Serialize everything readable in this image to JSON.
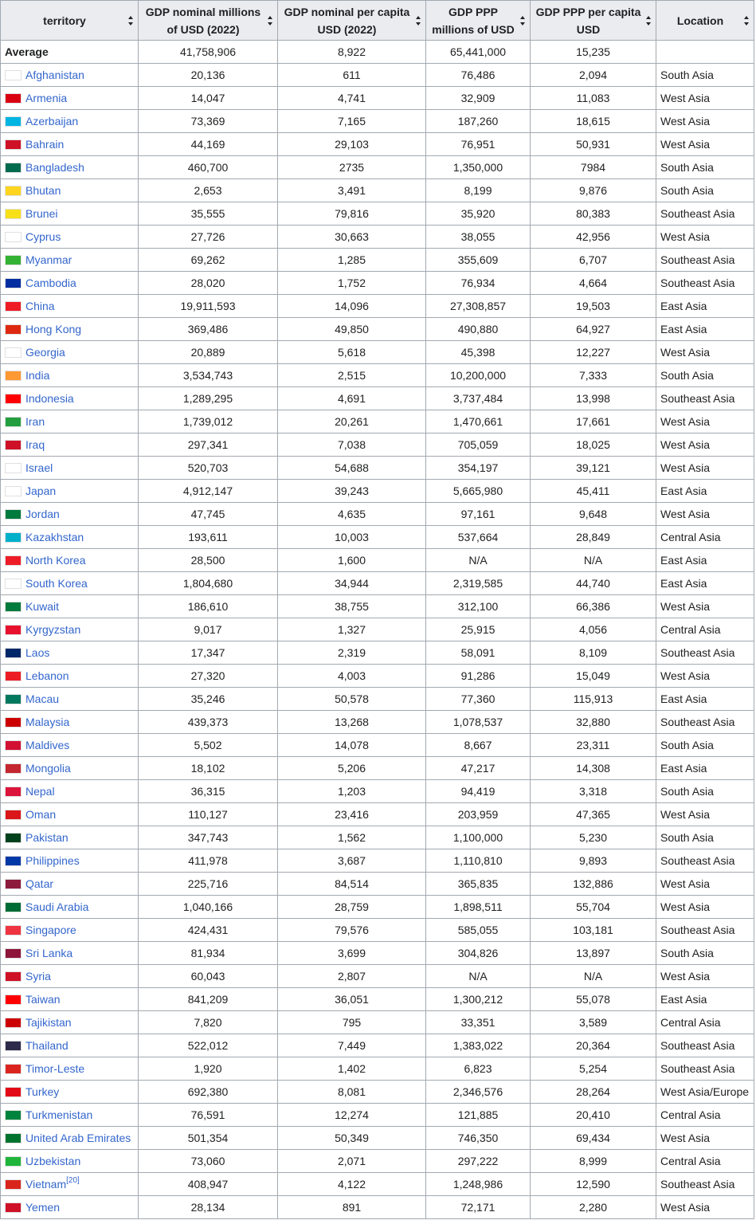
{
  "headers": [
    "territory",
    "GDP nominal millions of USD (2022)",
    "GDP nominal per capita USD (2022)",
    "GDP PPP millions of USD",
    "GDP PPP per capita USD",
    "Location"
  ],
  "average": {
    "label": "Average",
    "gdp_nominal": "41,758,906",
    "gdp_nominal_pc": "8,922",
    "gdp_ppp": "65,441,000",
    "gdp_ppp_pc": "15,235",
    "location": ""
  },
  "rows": [
    {
      "name": "Afghanistan",
      "n": "20,136",
      "npc": "611",
      "p": "76,486",
      "ppc": "2,094",
      "loc": "South Asia",
      "flag": "#ffffff"
    },
    {
      "name": "Armenia",
      "n": "14,047",
      "npc": "4,741",
      "p": "32,909",
      "ppc": "11,083",
      "loc": "West Asia",
      "flag": "#d90012"
    },
    {
      "name": "Azerbaijan",
      "n": "73,369",
      "npc": "7,165",
      "p": "187,260",
      "ppc": "18,615",
      "loc": "West Asia",
      "flag": "#00b5e2"
    },
    {
      "name": "Bahrain",
      "n": "44,169",
      "npc": "29,103",
      "p": "76,951",
      "ppc": "50,931",
      "loc": "West Asia",
      "flag": "#ce1126"
    },
    {
      "name": "Bangladesh",
      "n": "460,700",
      "npc": "2735",
      "p": "1,350,000",
      "ppc": "7984",
      "loc": "South Asia",
      "flag": "#006a4e"
    },
    {
      "name": "Bhutan",
      "n": "2,653",
      "npc": "3,491",
      "p": "8,199",
      "ppc": "9,876",
      "loc": "South Asia",
      "flag": "#ffd520"
    },
    {
      "name": "Brunei",
      "n": "35,555",
      "npc": "79,816",
      "p": "35,920",
      "ppc": "80,383",
      "loc": "Southeast Asia",
      "flag": "#f7e017"
    },
    {
      "name": "Cyprus",
      "n": "27,726",
      "npc": "30,663",
      "p": "38,055",
      "ppc": "42,956",
      "loc": "West Asia",
      "flag": "#ffffff"
    },
    {
      "name": "Myanmar",
      "n": "69,262",
      "npc": "1,285",
      "p": "355,609",
      "ppc": "6,707",
      "loc": "Southeast Asia",
      "flag": "#34b233"
    },
    {
      "name": "Cambodia",
      "n": "28,020",
      "npc": "1,752",
      "p": "76,934",
      "ppc": "4,664",
      "loc": "Southeast Asia",
      "flag": "#032ea1"
    },
    {
      "name": "China",
      "n": "19,911,593",
      "npc": "14,096",
      "p": "27,308,857",
      "ppc": "19,503",
      "loc": "East Asia",
      "flag": "#ee1c25"
    },
    {
      "name": "Hong Kong",
      "n": "369,486",
      "npc": "49,850",
      "p": "490,880",
      "ppc": "64,927",
      "loc": "East Asia",
      "flag": "#de2910"
    },
    {
      "name": "Georgia",
      "n": "20,889",
      "npc": "5,618",
      "p": "45,398",
      "ppc": "12,227",
      "loc": "West Asia",
      "flag": "#ffffff"
    },
    {
      "name": "India",
      "n": "3,534,743",
      "npc": "2,515",
      "p": "10,200,000",
      "ppc": "7,333",
      "loc": "South Asia",
      "flag": "#ff9933"
    },
    {
      "name": "Indonesia",
      "n": "1,289,295",
      "npc": "4,691",
      "p": "3,737,484",
      "ppc": "13,998",
      "loc": "Southeast Asia",
      "flag": "#ff0000"
    },
    {
      "name": "Iran",
      "n": "1,739,012",
      "npc": "20,261",
      "p": "1,470,661",
      "ppc": "17,661",
      "loc": "West Asia",
      "flag": "#239f40"
    },
    {
      "name": "Iraq",
      "n": "297,341",
      "npc": "7,038",
      "p": "705,059",
      "ppc": "18,025",
      "loc": "West Asia",
      "flag": "#ce1126"
    },
    {
      "name": "Israel",
      "n": "520,703",
      "npc": "54,688",
      "p": "354,197",
      "ppc": "39,121",
      "loc": "West Asia",
      "flag": "#ffffff"
    },
    {
      "name": "Japan",
      "n": "4,912,147",
      "npc": "39,243",
      "p": "5,665,980",
      "ppc": "45,411",
      "loc": "East Asia",
      "flag": "#ffffff"
    },
    {
      "name": "Jordan",
      "n": "47,745",
      "npc": "4,635",
      "p": "97,161",
      "ppc": "9,648",
      "loc": "West Asia",
      "flag": "#007a3d"
    },
    {
      "name": "Kazakhstan",
      "n": "193,611",
      "npc": "10,003",
      "p": "537,664",
      "ppc": "28,849",
      "loc": "Central Asia",
      "flag": "#00afca"
    },
    {
      "name": "North Korea",
      "n": "28,500",
      "npc": "1,600",
      "p": "N/A",
      "ppc": "N/A",
      "loc": "East Asia",
      "flag": "#ed1c27"
    },
    {
      "name": "South Korea",
      "n": "1,804,680",
      "npc": "34,944",
      "p": "2,319,585",
      "ppc": "44,740",
      "loc": "East Asia",
      "flag": "#ffffff"
    },
    {
      "name": "Kuwait",
      "n": "186,610",
      "npc": "38,755",
      "p": "312,100",
      "ppc": "66,386",
      "loc": "West Asia",
      "flag": "#007a3d"
    },
    {
      "name": "Kyrgyzstan",
      "n": "9,017",
      "npc": "1,327",
      "p": "25,915",
      "ppc": "4,056",
      "loc": "Central Asia",
      "flag": "#e8112d"
    },
    {
      "name": "Laos",
      "n": "17,347",
      "npc": "2,319",
      "p": "58,091",
      "ppc": "8,109",
      "loc": "Southeast Asia",
      "flag": "#002868"
    },
    {
      "name": "Lebanon",
      "n": "27,320",
      "npc": "4,003",
      "p": "91,286",
      "ppc": "15,049",
      "loc": "West Asia",
      "flag": "#ed1c24"
    },
    {
      "name": "Macau",
      "n": "35,246",
      "npc": "50,578",
      "p": "77,360",
      "ppc": "115,913",
      "loc": "East Asia",
      "flag": "#00785e"
    },
    {
      "name": "Malaysia",
      "n": "439,373",
      "npc": "13,268",
      "p": "1,078,537",
      "ppc": "32,880",
      "loc": "Southeast Asia",
      "flag": "#cc0001"
    },
    {
      "name": "Maldives",
      "n": "5,502",
      "npc": "14,078",
      "p": "8,667",
      "ppc": "23,311",
      "loc": "South Asia",
      "flag": "#d21034"
    },
    {
      "name": "Mongolia",
      "n": "18,102",
      "npc": "5,206",
      "p": "47,217",
      "ppc": "14,308",
      "loc": "East Asia",
      "flag": "#c4272f"
    },
    {
      "name": "Nepal",
      "n": "36,315",
      "npc": "1,203",
      "p": "94,419",
      "ppc": "3,318",
      "loc": "South Asia",
      "flag": "#dc143c"
    },
    {
      "name": "Oman",
      "n": "110,127",
      "npc": "23,416",
      "p": "203,959",
      "ppc": "47,365",
      "loc": "West Asia",
      "flag": "#db161b"
    },
    {
      "name": "Pakistan",
      "n": "347,743",
      "npc": "1,562",
      "p": "1,100,000",
      "ppc": "5,230",
      "loc": "South Asia",
      "flag": "#01411c"
    },
    {
      "name": "Philippines",
      "n": "411,978",
      "npc": "3,687",
      "p": "1,110,810",
      "ppc": "9,893",
      "loc": "Southeast Asia",
      "flag": "#0038a8"
    },
    {
      "name": "Qatar",
      "n": "225,716",
      "npc": "84,514",
      "p": "365,835",
      "ppc": "132,886",
      "loc": "West Asia",
      "flag": "#8d1b3d"
    },
    {
      "name": "Saudi Arabia",
      "n": "1,040,166",
      "npc": "28,759",
      "p": "1,898,511",
      "ppc": "55,704",
      "loc": "West Asia",
      "flag": "#006c35"
    },
    {
      "name": "Singapore",
      "n": "424,431",
      "npc": "79,576",
      "p": "585,055",
      "ppc": "103,181",
      "loc": "Southeast Asia",
      "flag": "#ef3340"
    },
    {
      "name": "Sri Lanka",
      "n": "81,934",
      "npc": "3,699",
      "p": "304,826",
      "ppc": "13,897",
      "loc": "South Asia",
      "flag": "#8d153a"
    },
    {
      "name": "Syria",
      "n": "60,043",
      "npc": "2,807",
      "p": "N/A",
      "ppc": "N/A",
      "loc": "West Asia",
      "flag": "#ce1126"
    },
    {
      "name": "Taiwan",
      "n": "841,209",
      "npc": "36,051",
      "p": "1,300,212",
      "ppc": "55,078",
      "loc": "East Asia",
      "flag": "#fe0000"
    },
    {
      "name": "Tajikistan",
      "n": "7,820",
      "npc": "795",
      "p": "33,351",
      "ppc": "3,589",
      "loc": "Central Asia",
      "flag": "#cc0000"
    },
    {
      "name": "Thailand",
      "n": "522,012",
      "npc": "7,449",
      "p": "1,383,022",
      "ppc": "20,364",
      "loc": "Southeast Asia",
      "flag": "#2d2a4a"
    },
    {
      "name": "Timor-Leste",
      "n": "1,920",
      "npc": "1,402",
      "p": "6,823",
      "ppc": "5,254",
      "loc": "Southeast Asia",
      "flag": "#dc241f"
    },
    {
      "name": "Turkey",
      "n": "692,380",
      "npc": "8,081",
      "p": "2,346,576",
      "ppc": "28,264",
      "loc": "West Asia/Europe",
      "flag": "#e30a17"
    },
    {
      "name": "Turkmenistan",
      "n": "76,591",
      "npc": "12,274",
      "p": "121,885",
      "ppc": "20,410",
      "loc": "Central Asia",
      "flag": "#00843d"
    },
    {
      "name": "United Arab Emirates",
      "n": "501,354",
      "npc": "50,349",
      "p": "746,350",
      "ppc": "69,434",
      "loc": "West Asia",
      "flag": "#00732f"
    },
    {
      "name": "Uzbekistan",
      "n": "73,060",
      "npc": "2,071",
      "p": "297,222",
      "ppc": "8,999",
      "loc": "Central Asia",
      "flag": "#1eb53a"
    },
    {
      "name": "Vietnam",
      "sup": "[20]",
      "n": "408,947",
      "npc": "4,122",
      "p": "1,248,986",
      "ppc": "12,590",
      "loc": "Southeast Asia",
      "flag": "#da251d"
    },
    {
      "name": "Yemen",
      "n": "28,134",
      "npc": "891",
      "p": "72,171",
      "ppc": "2,280",
      "loc": "West Asia",
      "flag": "#ce1126"
    }
  ]
}
